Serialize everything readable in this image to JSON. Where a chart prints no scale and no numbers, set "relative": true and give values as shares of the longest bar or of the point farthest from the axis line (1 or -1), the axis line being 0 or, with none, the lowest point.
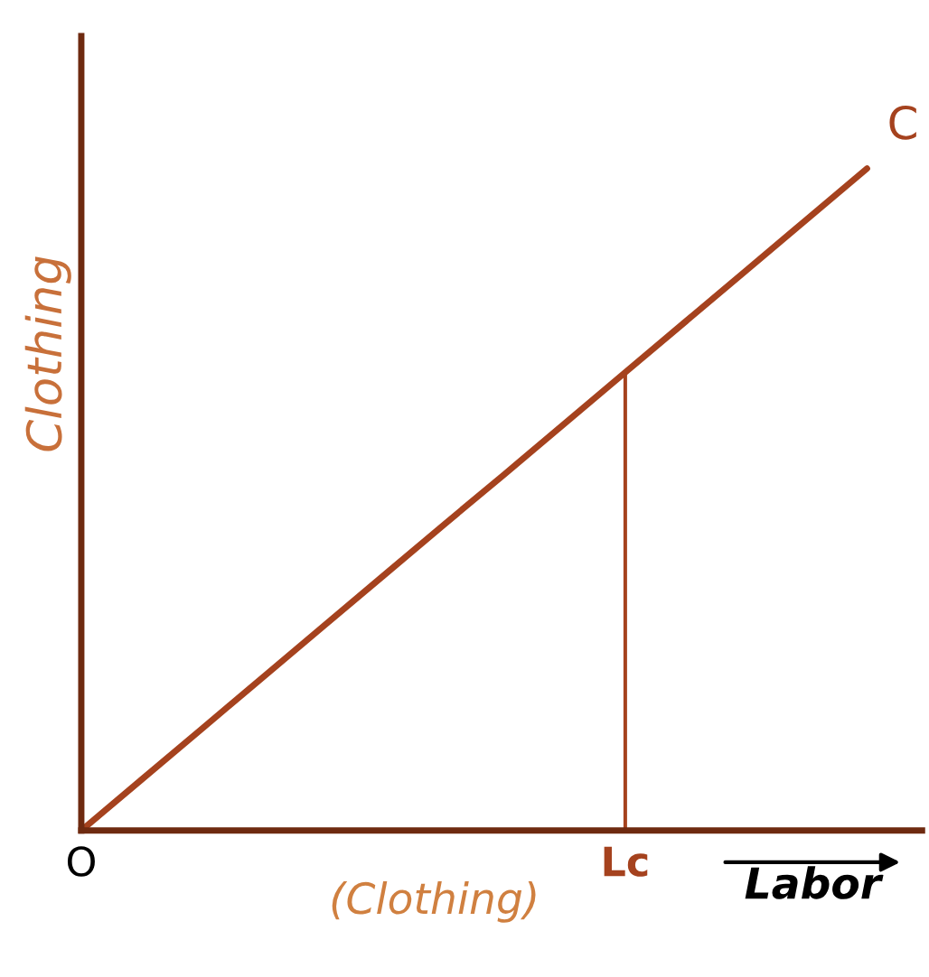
{
  "chart_data": {
    "type": "line",
    "relative": true,
    "ylabel": "Clothing",
    "xlabel": "Labor",
    "line_style": "solid",
    "marker": "none",
    "categories": [
      "O",
      null,
      null,
      null,
      null,
      null,
      null,
      null,
      null,
      "Lc",
      null,
      null,
      null,
      null
    ],
    "series": [
      {
        "name": "C",
        "color": "#a5421e",
        "values": [
          0,
          0.077,
          0.154,
          0.231,
          0.308,
          0.385,
          0.462,
          0.538,
          0.615,
          0.692,
          0.769,
          0.846,
          0.923,
          1
        ]
      },
      {
        "type": "bar",
        "color": "#a5421e",
        "values": [
          null,
          null,
          null,
          null,
          null,
          null,
          null,
          null,
          null,
          0.692,
          null,
          null,
          null,
          null
        ]
      }
    ],
    "annotations": [
      "(Clothing)"
    ]
  }
}
